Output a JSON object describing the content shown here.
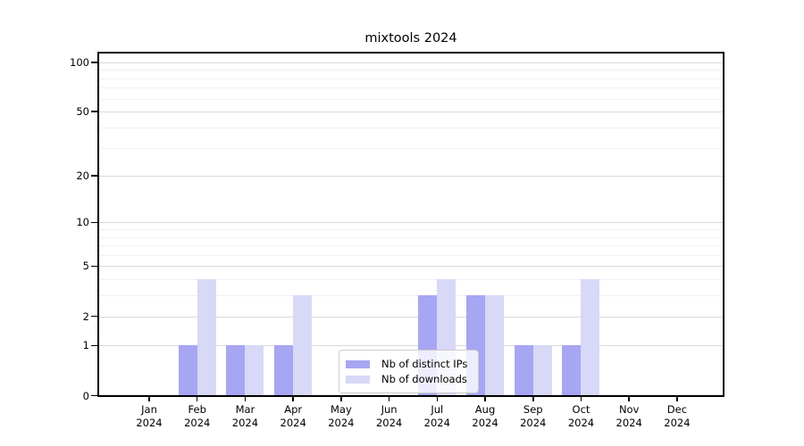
{
  "chart_data": {
    "type": "bar",
    "title": "mixtools 2024",
    "categories": [
      "Jan",
      "Feb",
      "Mar",
      "Apr",
      "May",
      "Jun",
      "Jul",
      "Aug",
      "Sep",
      "Oct",
      "Nov",
      "Dec"
    ],
    "category_year": "2024",
    "series": [
      {
        "name": "Nb of distinct IPs",
        "color": "#a6a6f3",
        "values": [
          0,
          1,
          1,
          1,
          0,
          0,
          3,
          3,
          1,
          1,
          0,
          0
        ]
      },
      {
        "name": "Nb of downloads",
        "color": "#d8d8f7",
        "values": [
          0,
          4,
          1,
          3,
          0,
          0,
          4,
          3,
          1,
          4,
          0,
          0
        ]
      }
    ],
    "xlabel": "",
    "ylabel": "",
    "y_axis": {
      "scale": "log1p",
      "tick_labels": [
        "0",
        "1",
        "2",
        "5",
        "10",
        "20",
        "50",
        "100"
      ],
      "ticks": [
        0,
        1,
        2,
        5,
        10,
        20,
        50,
        100
      ],
      "minor_gridlines": [
        3,
        4,
        6,
        7,
        8,
        9,
        30,
        40,
        60,
        70,
        80,
        90
      ],
      "ylim": [
        0,
        115
      ]
    },
    "grid": true,
    "legend_position": "lower center"
  },
  "colors": {
    "background": "#ffffff",
    "spine": "#000000",
    "gridline_major": "#d9d9d9",
    "gridline_minor": "#f0f0f0",
    "legend_border": "#cccccc"
  }
}
